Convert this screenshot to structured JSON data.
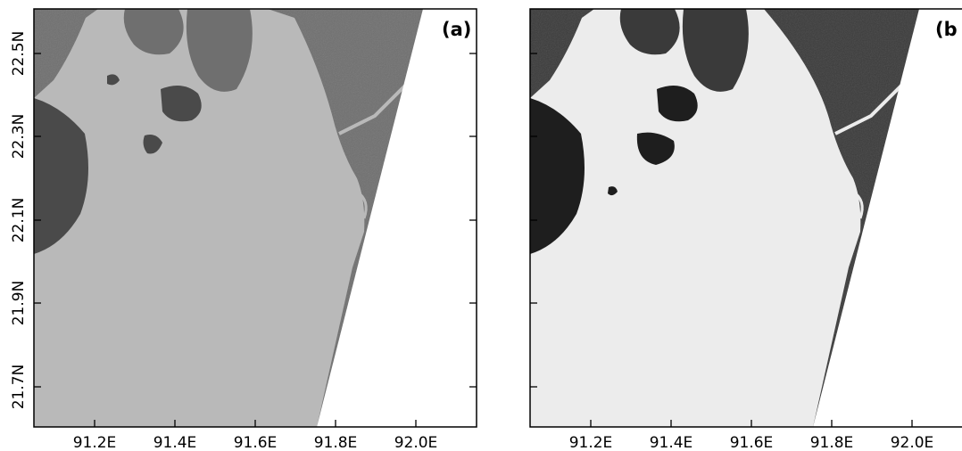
{
  "panels": [
    {
      "label": "(a)",
      "water_tone": "#b9b9b9",
      "land_tone": "#6f6f6f",
      "dark_tone": "#4a4a4a"
    },
    {
      "label": "(b",
      "water_tone": "#ececec",
      "land_tone": "#3a3a3a",
      "dark_tone": "#1e1e1e"
    }
  ],
  "x_ticks": [
    "91.2E",
    "91.4E",
    "91.6E",
    "91.8E",
    "92.0E"
  ],
  "y_ticks": [
    "22.5N",
    "22.3N",
    "22.1N",
    "21.9N",
    "21.7N"
  ]
}
